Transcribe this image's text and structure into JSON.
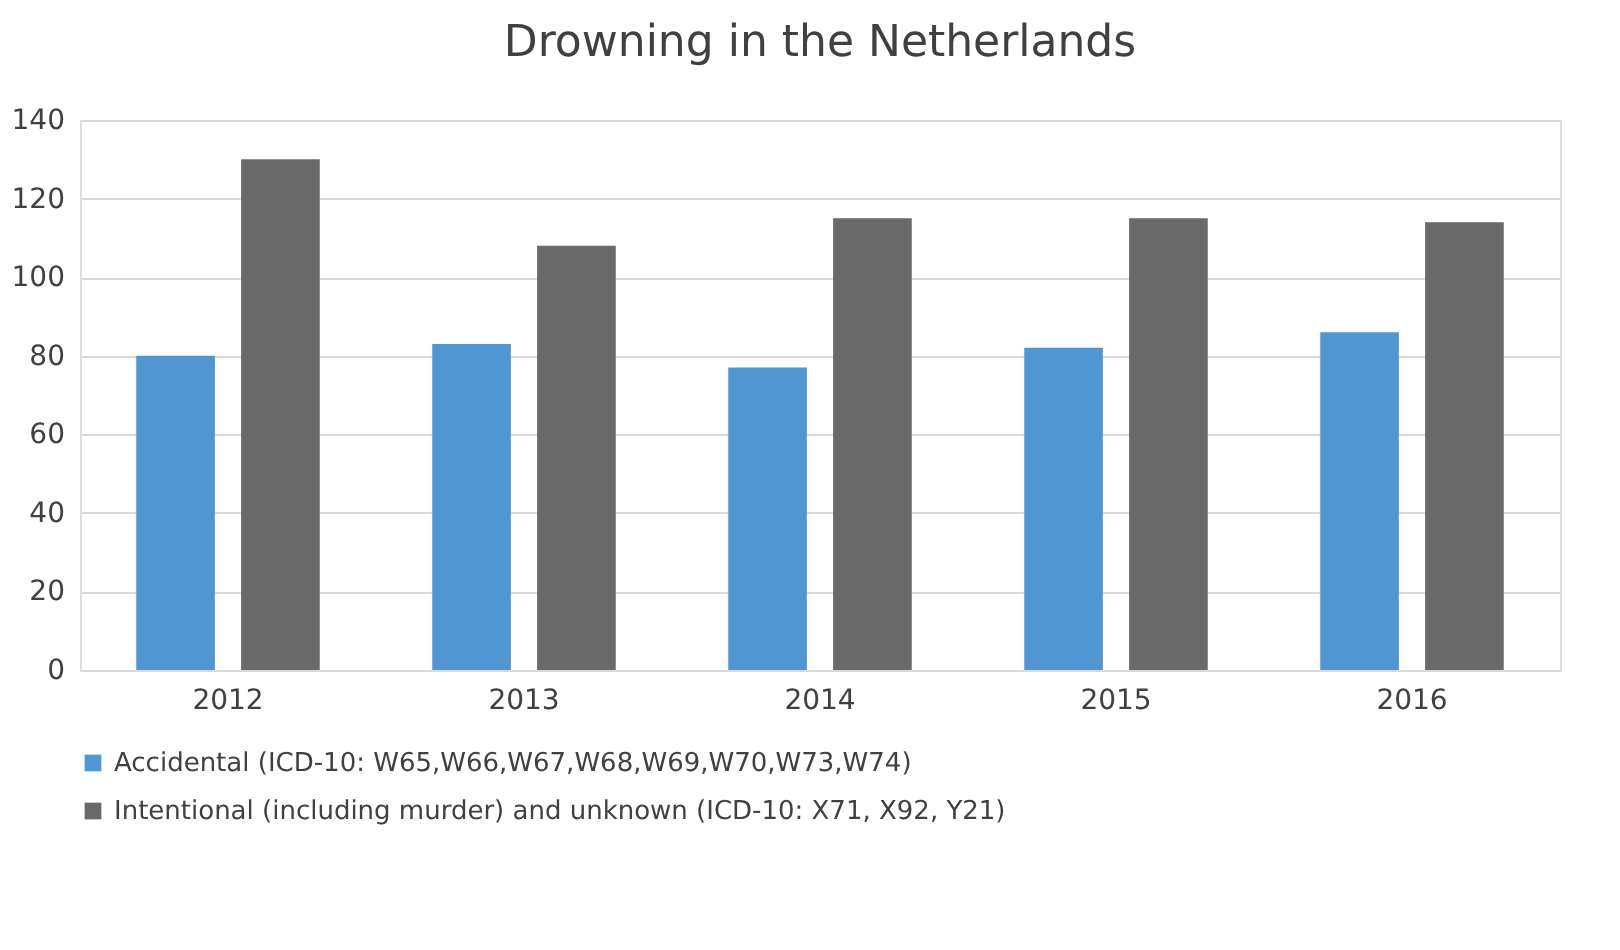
{
  "chart_data": {
    "type": "bar",
    "title": "Drowning in the Netherlands",
    "categories": [
      "2012",
      "2013",
      "2014",
      "2015",
      "2016"
    ],
    "series": [
      {
        "name": "Accidental (ICD-10: W65,W66,W67,W68,W69,W70,W73,W74)",
        "color": "#5096d2",
        "values": [
          80,
          83,
          77,
          82,
          86
        ]
      },
      {
        "name": "Intentional (including murder) and unknown  (ICD-10: X71, X92, Y21)",
        "color": "#696969",
        "values": [
          130,
          108,
          115,
          115,
          114
        ]
      }
    ],
    "ylim": [
      0,
      140
    ],
    "yticks": [
      0,
      20,
      40,
      60,
      80,
      100,
      120,
      140
    ],
    "grid": "y",
    "legend": "bottom"
  }
}
